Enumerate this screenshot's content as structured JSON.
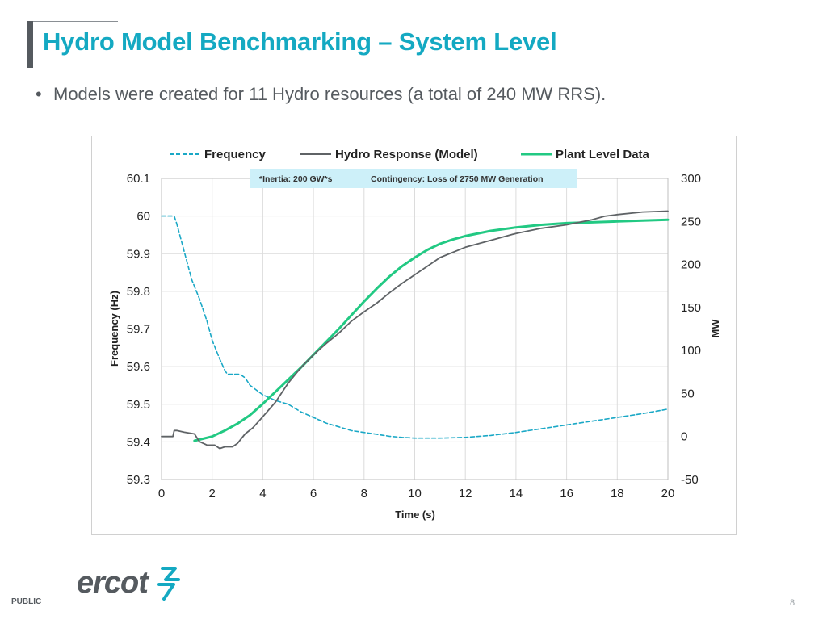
{
  "slide": {
    "title": "Hydro Model Benchmarking – System Level",
    "bullet_marker": "•",
    "bullet": "Models were created for 11 Hydro resources (a total of 240 MW RRS).",
    "footer_label": "PUBLIC",
    "page_number": "8",
    "logo_text": "ercot"
  },
  "colors": {
    "title": "#14a9c2",
    "text": "#555a5f",
    "frequency": "#1aa8c6",
    "model": "#5f6366",
    "plant": "#22c983",
    "annotation_bg": "#cdf0f9",
    "logo": "#555a5f"
  },
  "chart_data": {
    "type": "line",
    "xlabel": "Time (s)",
    "ylabel_left": "Frequency (Hz)",
    "ylabel_right": "MW",
    "xlim": [
      0,
      20
    ],
    "ylim_left": [
      59.3,
      60.1
    ],
    "ylim_right": [
      -50,
      300
    ],
    "x_ticks": [
      "0",
      "2",
      "4",
      "6",
      "8",
      "10",
      "12",
      "14",
      "16",
      "18",
      "20"
    ],
    "y_left_ticks": [
      "60.1",
      "60",
      "59.9",
      "59.8",
      "59.7",
      "59.6",
      "59.5",
      "59.4",
      "59.3"
    ],
    "y_right_ticks": [
      "300",
      "250",
      "200",
      "150",
      "100",
      "50",
      "0",
      "-50"
    ],
    "grid": true,
    "legend": [
      "Frequency",
      "Hydro Response (Model)",
      "Plant Level Data"
    ],
    "annotation": {
      "inertia": "*Inertia: 200 GW*s",
      "contingency": "Contingency: Loss of 2750 MW Generation"
    },
    "series": [
      {
        "name": "Frequency",
        "axis": "left",
        "style": "dashed",
        "x": [
          0,
          0.5,
          0.6,
          0.8,
          1.0,
          1.2,
          1.5,
          1.8,
          2.0,
          2.3,
          2.5,
          2.6,
          2.8,
          3.1,
          3.3,
          3.5,
          3.8,
          4.0,
          4.5,
          5.0,
          5.5,
          6.0,
          6.5,
          7.0,
          7.5,
          8.0,
          8.5,
          9.0,
          9.5,
          10,
          11,
          12,
          13,
          14,
          15,
          16,
          17,
          18,
          19,
          20
        ],
        "y": [
          60.0,
          60.0,
          59.98,
          59.93,
          59.88,
          59.83,
          59.78,
          59.72,
          59.67,
          59.62,
          59.59,
          59.58,
          59.58,
          59.58,
          59.57,
          59.55,
          59.535,
          59.525,
          59.51,
          59.5,
          59.48,
          59.465,
          59.45,
          59.44,
          59.43,
          59.425,
          59.42,
          59.415,
          59.412,
          59.41,
          59.41,
          59.412,
          59.417,
          59.425,
          59.435,
          59.445,
          59.455,
          59.465,
          59.475,
          59.487
        ]
      },
      {
        "name": "Hydro Response (Model)",
        "axis": "right",
        "style": "solid",
        "x": [
          0,
          0.45,
          0.5,
          0.6,
          0.9,
          1.3,
          1.5,
          1.8,
          2.1,
          2.3,
          2.5,
          2.8,
          3.0,
          3.3,
          3.6,
          4.0,
          4.5,
          5.0,
          5.5,
          6.0,
          6.5,
          7.0,
          7.5,
          8.0,
          8.5,
          9.0,
          9.5,
          10,
          10.5,
          11,
          12,
          13,
          14,
          15,
          16,
          17,
          17.5,
          18,
          19,
          20
        ],
        "y": [
          0,
          0,
          7,
          7,
          5,
          3,
          -6,
          -10,
          -10,
          -14,
          -12,
          -12,
          -8,
          3,
          10,
          23,
          40,
          62,
          80,
          95,
          108,
          120,
          134,
          145,
          155,
          167,
          178,
          188,
          198,
          208,
          220,
          228,
          236,
          242,
          246,
          252,
          256,
          258,
          261,
          262
        ]
      },
      {
        "name": "Plant Level Data",
        "axis": "right",
        "style": "solid",
        "x": [
          1.3,
          2.0,
          2.5,
          3.0,
          3.5,
          4.0,
          4.5,
          5.0,
          5.5,
          6.0,
          6.5,
          7.0,
          7.5,
          8.0,
          8.5,
          9.0,
          9.5,
          10,
          10.5,
          11,
          11.5,
          12,
          13,
          14,
          15,
          16,
          17,
          18,
          19,
          20
        ],
        "y": [
          -5,
          0,
          7,
          15,
          25,
          38,
          52,
          66,
          80,
          95,
          110,
          125,
          141,
          157,
          172,
          186,
          198,
          208,
          217,
          224,
          229,
          233,
          239,
          243,
          246,
          248,
          249,
          250,
          251,
          252
        ]
      }
    ]
  }
}
